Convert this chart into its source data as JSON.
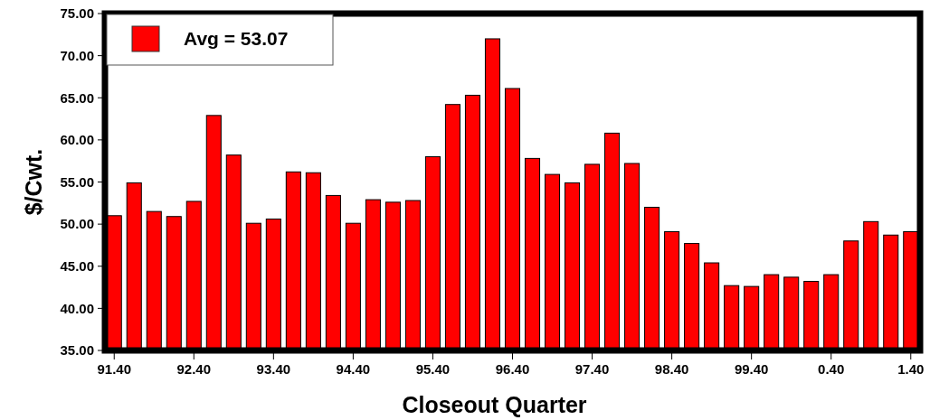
{
  "chart_data": {
    "type": "bar",
    "xlabel": "Closeout Quarter",
    "ylabel": "$/Cwt.",
    "categories": [
      "91.40",
      null,
      null,
      null,
      "92.40",
      null,
      null,
      null,
      "93.40",
      null,
      null,
      null,
      "94.40",
      null,
      null,
      null,
      "95.40",
      null,
      null,
      null,
      "96.40",
      null,
      null,
      null,
      "97.40",
      null,
      null,
      null,
      "98.40",
      null,
      null,
      null,
      "99.40",
      null,
      null,
      null,
      "0.40",
      null,
      null,
      null,
      "1.40"
    ],
    "series": [
      {
        "name": "Avg = 53.07",
        "color": "#ff0000",
        "values": [
          51.0,
          54.9,
          51.5,
          50.9,
          52.7,
          62.9,
          58.2,
          50.1,
          50.6,
          56.2,
          56.1,
          53.4,
          50.1,
          52.9,
          52.6,
          52.8,
          58.0,
          64.2,
          65.3,
          72.0,
          66.1,
          57.8,
          55.9,
          54.9,
          57.1,
          60.8,
          57.2,
          52.0,
          49.1,
          47.7,
          45.4,
          42.7,
          42.6,
          44.0,
          43.7,
          43.2,
          44.0,
          48.0,
          50.3,
          48.7,
          49.1
        ]
      }
    ],
    "ylim": [
      35,
      75
    ],
    "yticks": [
      {
        "value": 35,
        "label": "35.00"
      },
      {
        "value": 40,
        "label": "40.00"
      },
      {
        "value": 45,
        "label": "45.00"
      },
      {
        "value": 50,
        "label": "50.00"
      },
      {
        "value": 55,
        "label": "55.00"
      },
      {
        "value": 60,
        "label": "60.00"
      },
      {
        "value": 65,
        "label": "65.00"
      },
      {
        "value": 70,
        "label": "70.00"
      },
      {
        "value": 75,
        "label": "75.00"
      }
    ],
    "grid": false,
    "legend": "top left"
  }
}
